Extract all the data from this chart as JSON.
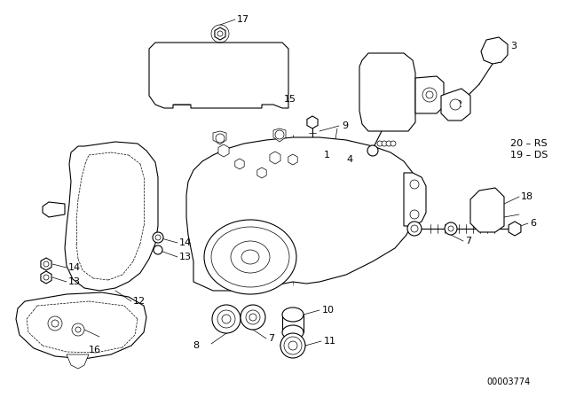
{
  "background_color": "#ffffff",
  "line_color": "#000000",
  "watermark": "00003774",
  "label_fs": 8,
  "lw_main": 0.8,
  "lw_thin": 0.5,
  "lw_thick": 1.2
}
